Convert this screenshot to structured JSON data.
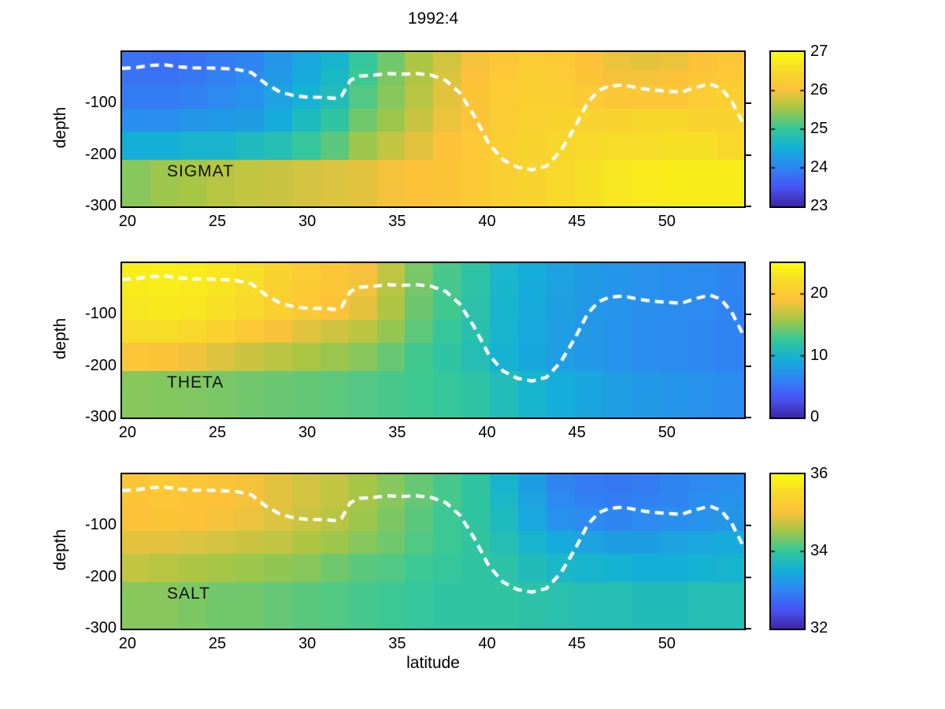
{
  "title": "1992:4",
  "axes": {
    "xlabel": "latitude",
    "ylabel": "depth",
    "lat_range": [
      19.7,
      54.3
    ],
    "depth_range": [
      -300,
      0
    ],
    "x_ticks": [
      20,
      25,
      30,
      35,
      40,
      45,
      50
    ],
    "y_ticks": [
      -100,
      -200,
      -300
    ]
  },
  "colormap": {
    "name": "parula",
    "stops": [
      [
        0,
        "#3e26a8"
      ],
      [
        0.127,
        "#4757f7"
      ],
      [
        0.254,
        "#2e87f2"
      ],
      [
        0.381,
        "#12b1d6"
      ],
      [
        0.508,
        "#37c897"
      ],
      [
        0.635,
        "#a5c646"
      ],
      [
        0.762,
        "#fdc23a"
      ],
      [
        0.889,
        "#f7dc29"
      ],
      [
        1,
        "#f9fb0e"
      ]
    ]
  },
  "mixed_layer_line": {
    "color": "#ffffff",
    "style": "dashed",
    "points": [
      [
        19.7,
        -32
      ],
      [
        20.5,
        -30
      ],
      [
        21.3,
        -26
      ],
      [
        22.1,
        -25
      ],
      [
        22.9,
        -29
      ],
      [
        23.7,
        -31
      ],
      [
        24.5,
        -31
      ],
      [
        25.3,
        -32
      ],
      [
        26.1,
        -34
      ],
      [
        26.9,
        -40
      ],
      [
        27.7,
        -62
      ],
      [
        28.5,
        -78
      ],
      [
        29.3,
        -85
      ],
      [
        30.1,
        -88
      ],
      [
        30.9,
        -88
      ],
      [
        31.5,
        -90
      ],
      [
        31.9,
        -86
      ],
      [
        32.4,
        -55
      ],
      [
        32.9,
        -47
      ],
      [
        33.7,
        -45
      ],
      [
        34.5,
        -42
      ],
      [
        35.3,
        -43
      ],
      [
        36.1,
        -42
      ],
      [
        36.9,
        -45
      ],
      [
        37.7,
        -55
      ],
      [
        38.5,
        -80
      ],
      [
        39.3,
        -125
      ],
      [
        40.1,
        -178
      ],
      [
        40.9,
        -210
      ],
      [
        41.7,
        -224
      ],
      [
        42.5,
        -229
      ],
      [
        43.3,
        -222
      ],
      [
        44.1,
        -192
      ],
      [
        44.9,
        -145
      ],
      [
        45.6,
        -98
      ],
      [
        46.2,
        -75
      ],
      [
        46.8,
        -66
      ],
      [
        47.6,
        -64
      ],
      [
        48.4,
        -70
      ],
      [
        49.2,
        -74
      ],
      [
        50.0,
        -76
      ],
      [
        50.8,
        -78
      ],
      [
        51.6,
        -69
      ],
      [
        52.4,
        -62
      ],
      [
        53.0,
        -70
      ],
      [
        53.6,
        -95
      ],
      [
        54.3,
        -143
      ]
    ]
  },
  "chart_data": {
    "type": "heatmap",
    "lat_edges": [
      19.7,
      21.27,
      22.85,
      24.42,
      26.0,
      27.57,
      29.15,
      30.72,
      32.3,
      33.87,
      35.44,
      37.02,
      38.59,
      40.17,
      41.74,
      43.32,
      44.89,
      46.46,
      48.04,
      49.61,
      51.19,
      52.76,
      54.3
    ],
    "depth_edges": [
      0,
      -35,
      -65,
      -110,
      -155,
      -210,
      -300
    ],
    "panels": [
      {
        "label": "SIGMAT",
        "clim": [
          23,
          27
        ],
        "colorbar_ticks": [
          23,
          24,
          25,
          26,
          27
        ],
        "values": [
          [
            23.8,
            23.75,
            23.8,
            23.9,
            24.0,
            24.2,
            24.4,
            24.6,
            25.0,
            25.3,
            25.6,
            25.8,
            26.0,
            26.15,
            26.25,
            26.2,
            26.05,
            25.95,
            25.9,
            25.95,
            26.05,
            26.15
          ],
          [
            23.8,
            23.8,
            23.85,
            23.95,
            24.05,
            24.25,
            24.45,
            24.65,
            25.05,
            25.35,
            25.6,
            25.85,
            26.05,
            26.2,
            26.3,
            26.25,
            26.1,
            26.0,
            26.0,
            26.05,
            26.15,
            26.2
          ],
          [
            23.9,
            23.9,
            23.95,
            24.05,
            24.15,
            24.35,
            24.55,
            24.75,
            25.15,
            25.4,
            25.65,
            25.9,
            26.1,
            26.25,
            26.3,
            26.3,
            26.2,
            26.15,
            26.15,
            26.15,
            26.25,
            26.3
          ],
          [
            24.1,
            24.1,
            24.2,
            24.25,
            24.3,
            24.45,
            24.7,
            24.95,
            25.3,
            25.5,
            25.75,
            25.95,
            26.1,
            26.25,
            26.35,
            26.4,
            26.4,
            26.4,
            26.45,
            26.45,
            26.4,
            26.4
          ],
          [
            24.5,
            24.5,
            24.6,
            24.6,
            24.7,
            24.8,
            25.0,
            25.2,
            25.5,
            25.7,
            25.9,
            26.05,
            26.2,
            26.3,
            26.4,
            26.45,
            26.5,
            26.55,
            26.55,
            26.6,
            26.6,
            26.5
          ],
          [
            25.4,
            25.5,
            25.55,
            25.65,
            25.7,
            25.75,
            25.8,
            25.85,
            25.9,
            26.0,
            26.05,
            26.1,
            26.2,
            26.3,
            26.4,
            26.5,
            26.6,
            26.7,
            26.75,
            26.8,
            26.8,
            26.8
          ]
        ]
      },
      {
        "label": "THETA",
        "clim": [
          0,
          25
        ],
        "colorbar_ticks": [
          0,
          10,
          20
        ],
        "values": [
          [
            23.8,
            24.0,
            23.7,
            23.2,
            22.5,
            21.2,
            20.3,
            19.7,
            18.8,
            16.8,
            14.6,
            13.2,
            12.0,
            10.2,
            9.2,
            8.4,
            7.8,
            7.4,
            7.1,
            6.9,
            6.7,
            6.2
          ],
          [
            23.6,
            23.8,
            23.5,
            23.0,
            22.3,
            21.0,
            20.2,
            19.6,
            18.6,
            16.6,
            14.5,
            13.1,
            11.9,
            10.1,
            9.1,
            8.3,
            7.8,
            7.4,
            7.1,
            6.9,
            6.7,
            6.2
          ],
          [
            23.2,
            23.4,
            23.1,
            22.6,
            21.9,
            20.7,
            19.9,
            19.3,
            18.2,
            16.3,
            14.3,
            13.0,
            11.8,
            10.0,
            9.0,
            8.2,
            7.7,
            7.3,
            7.0,
            6.8,
            6.6,
            6.1
          ],
          [
            22.2,
            22.3,
            21.8,
            21.0,
            19.9,
            18.9,
            18.0,
            17.4,
            16.7,
            15.4,
            13.8,
            12.6,
            11.5,
            9.9,
            8.9,
            8.1,
            7.6,
            7.2,
            6.9,
            6.7,
            6.5,
            6.0
          ],
          [
            19.5,
            19.2,
            18.6,
            17.9,
            17.2,
            16.6,
            16.1,
            15.6,
            15.0,
            14.1,
            13.0,
            12.1,
            11.2,
            9.8,
            8.8,
            8.1,
            7.6,
            7.2,
            6.9,
            6.7,
            6.5,
            6.0
          ],
          [
            15.0,
            14.9,
            14.8,
            14.6,
            14.4,
            14.2,
            14.0,
            13.8,
            13.5,
            13.2,
            12.9,
            12.5,
            12.0,
            11.0,
            10.0,
            9.2,
            8.6,
            8.1,
            7.7,
            7.4,
            7.1,
            6.7
          ]
        ]
      },
      {
        "label": "SALT",
        "clim": [
          32,
          36
        ],
        "colorbar_ticks": [
          32,
          34,
          36
        ],
        "values": [
          [
            35.1,
            35.2,
            35.15,
            35.1,
            35.0,
            34.9,
            34.8,
            34.7,
            34.55,
            34.4,
            34.25,
            34.1,
            33.95,
            33.6,
            33.3,
            33.0,
            32.9,
            32.85,
            32.9,
            33.0,
            33.05,
            33.1
          ],
          [
            35.1,
            35.15,
            35.1,
            35.05,
            35.0,
            34.9,
            34.8,
            34.7,
            34.55,
            34.4,
            34.25,
            34.1,
            33.95,
            33.65,
            33.35,
            33.05,
            32.95,
            32.9,
            32.95,
            33.0,
            33.1,
            33.15
          ],
          [
            35.05,
            35.1,
            35.05,
            35.0,
            34.95,
            34.85,
            34.75,
            34.65,
            34.5,
            34.35,
            34.2,
            34.05,
            33.95,
            33.7,
            33.4,
            33.15,
            33.05,
            33.0,
            33.05,
            33.1,
            33.15,
            33.2
          ],
          [
            34.9,
            34.9,
            34.85,
            34.8,
            34.75,
            34.7,
            34.6,
            34.5,
            34.4,
            34.3,
            34.15,
            34.05,
            33.95,
            33.8,
            33.6,
            33.45,
            33.35,
            33.3,
            33.3,
            33.35,
            33.4,
            33.45
          ],
          [
            34.7,
            34.65,
            34.6,
            34.55,
            34.5,
            34.45,
            34.4,
            34.3,
            34.2,
            34.15,
            34.05,
            34.0,
            33.95,
            33.9,
            33.75,
            33.65,
            33.6,
            33.55,
            33.5,
            33.5,
            33.55,
            33.6
          ],
          [
            34.4,
            34.4,
            34.35,
            34.3,
            34.3,
            34.25,
            34.2,
            34.15,
            34.1,
            34.05,
            34.0,
            33.95,
            33.95,
            33.95,
            33.9,
            33.85,
            33.8,
            33.8,
            33.75,
            33.75,
            33.8,
            33.8
          ]
        ]
      }
    ]
  }
}
